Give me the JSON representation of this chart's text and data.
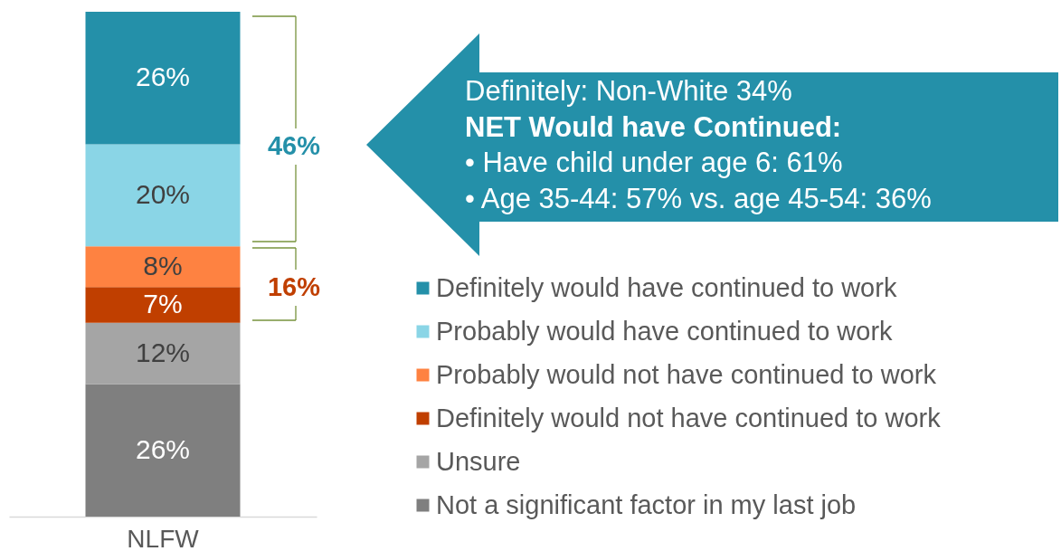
{
  "chart_data": {
    "type": "bar",
    "stacked": true,
    "categories": [
      "NLFW"
    ],
    "series": [
      {
        "name": "Not a significant factor in my last job",
        "color": "#7f7f7f",
        "values": [
          26
        ],
        "value_labels": [
          "26%"
        ]
      },
      {
        "name": "Unsure",
        "color": "#a5a5a5",
        "values": [
          12
        ],
        "value_labels": [
          "12%"
        ]
      },
      {
        "name": "Definitely would not have continued to work",
        "color": "#c03f00",
        "values": [
          7
        ],
        "value_labels": [
          "7%"
        ]
      },
      {
        "name": "Probably would not have continued to work",
        "color": "#fe8241",
        "values": [
          8
        ],
        "value_labels": [
          "8%"
        ]
      },
      {
        "name": "Probably would have continued to work",
        "color": "#8ad5e6",
        "values": [
          20
        ],
        "value_labels": [
          "20%"
        ]
      },
      {
        "name": "Definitely would have continued to work",
        "color": "#2490a9",
        "values": [
          26
        ],
        "value_labels": [
          "26%"
        ]
      }
    ],
    "annotations": [
      "Definitely: Non-White 34%",
      "NET Would have Continued:",
      "• Have child under age 6: 61%",
      "• Age 35-44: 57% vs. age 45-54: 36%",
      "46%",
      "16%"
    ],
    "legend": "right",
    "tick_labels": "x"
  }
}
